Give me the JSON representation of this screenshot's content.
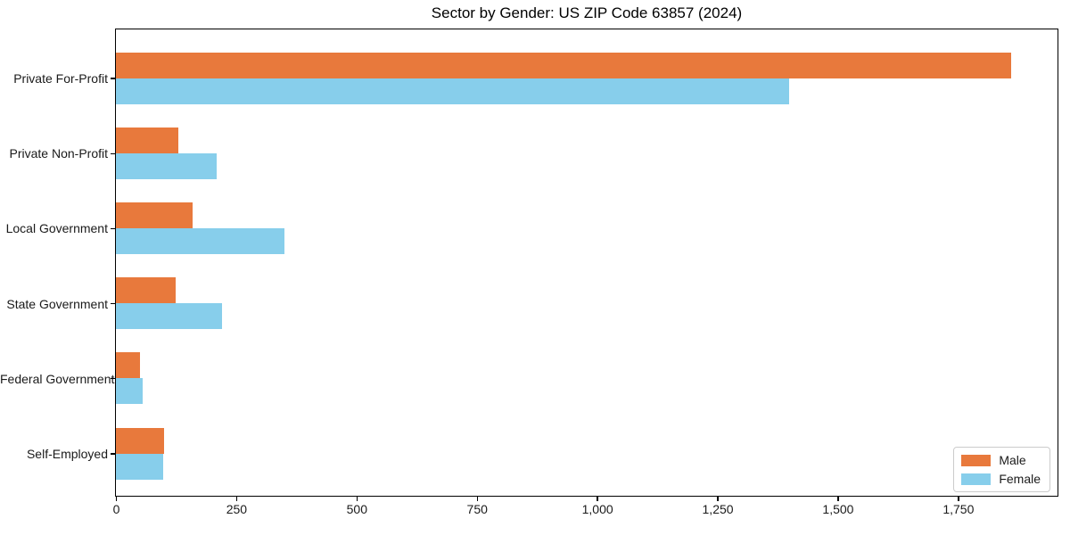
{
  "chart_data": {
    "type": "bar",
    "orientation": "horizontal",
    "title": "Sector by Gender: US ZIP Code 63857 (2024)",
    "categories": [
      "Private For-Profit",
      "Private Non-Profit",
      "Local Government",
      "State Government",
      "Federal Government",
      "Self-Employed"
    ],
    "series": [
      {
        "name": "Male",
        "color": "#E8793C",
        "values": [
          1860,
          130,
          160,
          125,
          50,
          100
        ]
      },
      {
        "name": "Female",
        "color": "#87CEEB",
        "values": [
          1400,
          210,
          350,
          220,
          55,
          98
        ]
      }
    ],
    "xlabel": "",
    "ylabel": "",
    "xlim": [
      0,
      1955
    ],
    "xticks": [
      0,
      250,
      500,
      750,
      1000,
      1250,
      1500,
      1750
    ],
    "xtick_labels": [
      "0",
      "250",
      "500",
      "750",
      "1,000",
      "1,250",
      "1,500",
      "1,750"
    ],
    "grid": false,
    "legend": {
      "position": "lower-right",
      "entries": [
        "Male",
        "Female"
      ]
    },
    "colors": {
      "background": "#ffffff",
      "axis": "#000000",
      "text": "#1a1a1a"
    }
  }
}
